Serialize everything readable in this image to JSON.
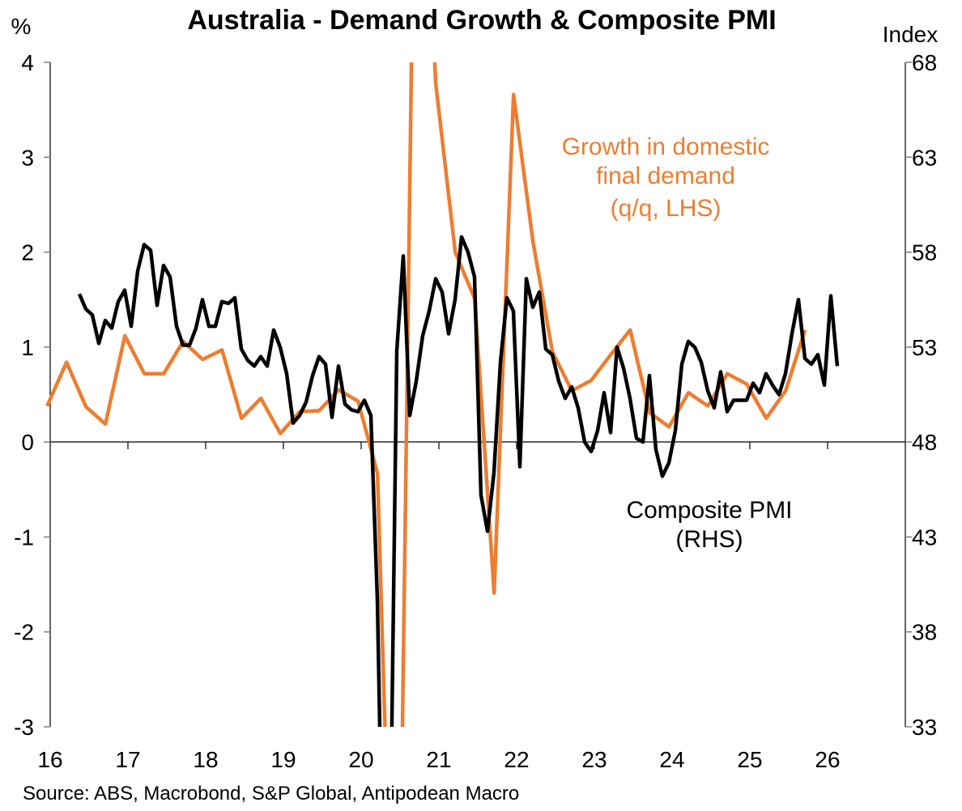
{
  "chart_data": {
    "type": "line",
    "title": "Australia - Demand Growth & Composite PMI",
    "ylabel_left": "%",
    "ylabel_right": "Index",
    "source": "Source: ABS, Macrobond, S&P Global, Antipodean Macro",
    "xlim": [
      2016,
      2027
    ],
    "ylim_left": [
      -3,
      4
    ],
    "ylim_right": [
      33,
      68
    ],
    "x_ticks": [
      {
        "v": 2016,
        "label": "16"
      },
      {
        "v": 2017,
        "label": "17"
      },
      {
        "v": 2018,
        "label": "18"
      },
      {
        "v": 2019,
        "label": "19"
      },
      {
        "v": 2020,
        "label": "20"
      },
      {
        "v": 2021,
        "label": "21"
      },
      {
        "v": 2022,
        "label": "22"
      },
      {
        "v": 2023,
        "label": "23"
      },
      {
        "v": 2024,
        "label": "24"
      },
      {
        "v": 2025,
        "label": "25"
      },
      {
        "v": 2026,
        "label": "26"
      }
    ],
    "y_ticks_left": [
      {
        "v": 4,
        "label": "4"
      },
      {
        "v": 3,
        "label": "3"
      },
      {
        "v": 2,
        "label": "2"
      },
      {
        "v": 1,
        "label": "1"
      },
      {
        "v": 0,
        "label": "0"
      },
      {
        "v": -1,
        "label": "-1"
      },
      {
        "v": -2,
        "label": "-2"
      },
      {
        "v": -3,
        "label": "-3"
      }
    ],
    "y_ticks_right": [
      {
        "v": 68,
        "label": "68"
      },
      {
        "v": 63,
        "label": "63"
      },
      {
        "v": 58,
        "label": "58"
      },
      {
        "v": 53,
        "label": "53"
      },
      {
        "v": 48,
        "label": "48"
      },
      {
        "v": 43,
        "label": "43"
      },
      {
        "v": 38,
        "label": "38"
      },
      {
        "v": 33,
        "label": "33"
      }
    ],
    "grid": false,
    "series": [
      {
        "name": "Growth in domestic final demand (q/q, LHS)",
        "axis": "left",
        "color": "#ED7D31",
        "frequency": "quarterly",
        "x_start": 2015.96,
        "x_step": 0.25,
        "annotation": [
          "Growth in domestic",
          "final demand",
          "(q/q, LHS)"
        ],
        "values": [
          0.38,
          0.84,
          0.37,
          0.19,
          1.12,
          0.72,
          0.72,
          1.06,
          0.87,
          0.97,
          0.25,
          0.46,
          0.09,
          0.32,
          0.33,
          0.55,
          0.43,
          -0.33,
          -7.3,
          7.8,
          3.77,
          2.0,
          1.51,
          -1.59,
          3.66,
          2.11,
          0.95,
          0.54,
          0.65,
          0.92,
          1.18,
          0.31,
          0.16,
          0.52,
          0.38,
          0.72,
          0.61,
          0.25,
          0.54,
          1.18
        ]
      },
      {
        "name": "Composite PMI (RHS)",
        "axis": "right",
        "color": "#000000",
        "frequency": "monthly",
        "x_start": 2016.375,
        "x_step": 0.083333,
        "annotation": [
          "Composite PMI",
          "(RHS)"
        ],
        "values": [
          55.8,
          55.0,
          54.7,
          53.2,
          54.4,
          54.0,
          55.4,
          56.0,
          54.1,
          57.0,
          58.4,
          58.1,
          55.2,
          57.3,
          56.7,
          54.1,
          53.1,
          53.1,
          54.0,
          55.5,
          54.1,
          54.1,
          55.4,
          55.3,
          55.6,
          52.9,
          52.3,
          52.0,
          52.5,
          52.0,
          53.9,
          53.0,
          51.6,
          49.0,
          49.4,
          50.1,
          51.5,
          52.5,
          52.1,
          49.3,
          52.0,
          50.0,
          49.7,
          49.6,
          50.2,
          49.4,
          39.7,
          21.7,
          26.9,
          52.8,
          57.8,
          49.4,
          51.2,
          53.6,
          54.9,
          56.6,
          55.9,
          53.7,
          55.5,
          58.8,
          58.0,
          56.7,
          45.2,
          43.3,
          46.4,
          52.2,
          55.6,
          54.9,
          46.7,
          56.6,
          55.1,
          55.9,
          52.9,
          52.6,
          51.2,
          50.3,
          50.9,
          49.8,
          48.0,
          47.5,
          48.6,
          50.6,
          48.5,
          53.0,
          51.9,
          50.3,
          48.2,
          48.0,
          51.5,
          47.6,
          46.2,
          46.9,
          48.6,
          52.1,
          53.3,
          53.0,
          52.2,
          50.7,
          49.8,
          51.7,
          49.6,
          50.2,
          50.2,
          50.2,
          51.1,
          50.6,
          51.6,
          51.0,
          50.5,
          51.6,
          53.7,
          55.5,
          52.4,
          52.1,
          52.6,
          51.0,
          55.7,
          52.0
        ]
      }
    ]
  }
}
